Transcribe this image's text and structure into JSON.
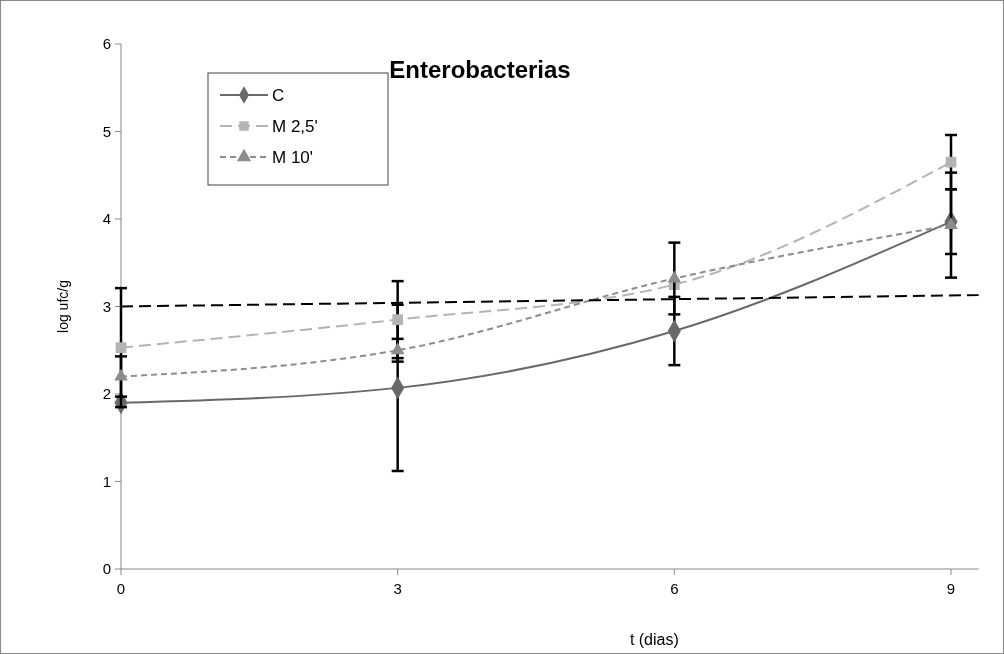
{
  "chart_data": {
    "type": "line",
    "title": "Enterobacterias",
    "xlabel": "t (dias)",
    "ylabel": "log ufc/g",
    "xlim": [
      0,
      9.3
    ],
    "xticks": [
      0,
      3,
      6,
      9
    ],
    "ylim": [
      0,
      6
    ],
    "yticks": [
      0,
      1,
      2,
      3,
      4,
      5,
      6
    ],
    "grid": false,
    "legend": "top left",
    "x": [
      0,
      3,
      6,
      9
    ],
    "series": [
      {
        "name": "C",
        "color": "#696969",
        "values": [
          1.9,
          2.07,
          2.72,
          3.97
        ],
        "errors": [
          null,
          0.95,
          0.39,
          0.37
        ],
        "marker": "diamond",
        "line_style": "solid"
      },
      {
        "name": "M 2,5'",
        "color": "#b4b4b4",
        "values": [
          2.53,
          2.85,
          3.25,
          4.65
        ],
        "errors": [
          0.68,
          0.44,
          null,
          0.31
        ],
        "marker": "square",
        "line_style": "dashed"
      },
      {
        "name": "M 10'",
        "color": "#8c8c8c",
        "values": [
          2.2,
          2.5,
          3.32,
          3.93
        ],
        "errors": [
          0.23,
          0.13,
          0.41,
          0.6
        ],
        "marker": "triangle",
        "line_style": "dotted"
      },
      {
        "type": "line",
        "color": "#000000",
        "x": [
          0,
          9.3
        ],
        "values": [
          3.0,
          3.13
        ],
        "marker": "none",
        "line_style": "dashed"
      }
    ]
  }
}
